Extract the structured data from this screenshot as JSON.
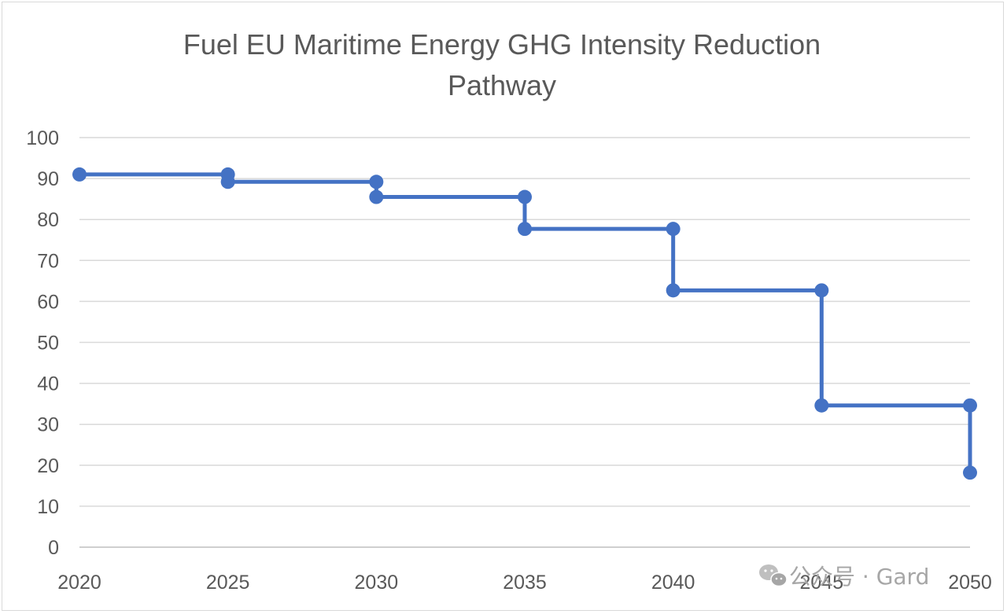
{
  "chart_data": {
    "type": "line",
    "title_lines": [
      "Fuel EU Maritime Energy GHG Intensity Reduction",
      "Pathway"
    ],
    "xlabel": "",
    "ylabel": "",
    "x_ticks": [
      "2020",
      "2025",
      "2030",
      "2035",
      "2040",
      "2045",
      "2050"
    ],
    "y_ticks": [
      "0",
      "10",
      "20",
      "30",
      "40",
      "50",
      "60",
      "70",
      "80",
      "90",
      "100"
    ],
    "xlim": [
      2020,
      2050
    ],
    "ylim": [
      0,
      100
    ],
    "grid": true,
    "legend": "none",
    "line_color": "#4472c4",
    "series": [
      {
        "points": [
          {
            "x": 2020,
            "y": 91
          },
          {
            "x": 2025,
            "y": 91
          },
          {
            "x": 2025,
            "y": 89.2
          },
          {
            "x": 2030,
            "y": 89.2
          },
          {
            "x": 2030,
            "y": 85.5
          },
          {
            "x": 2035,
            "y": 85.5
          },
          {
            "x": 2035,
            "y": 77.7
          },
          {
            "x": 2040,
            "y": 77.7
          },
          {
            "x": 2040,
            "y": 62.7
          },
          {
            "x": 2045,
            "y": 62.7
          },
          {
            "x": 2045,
            "y": 34.6
          },
          {
            "x": 2050,
            "y": 34.6
          },
          {
            "x": 2050,
            "y": 18.2
          }
        ]
      }
    ]
  },
  "watermark": {
    "text": "公众号 · Gard",
    "icon": "wechat-icon"
  }
}
